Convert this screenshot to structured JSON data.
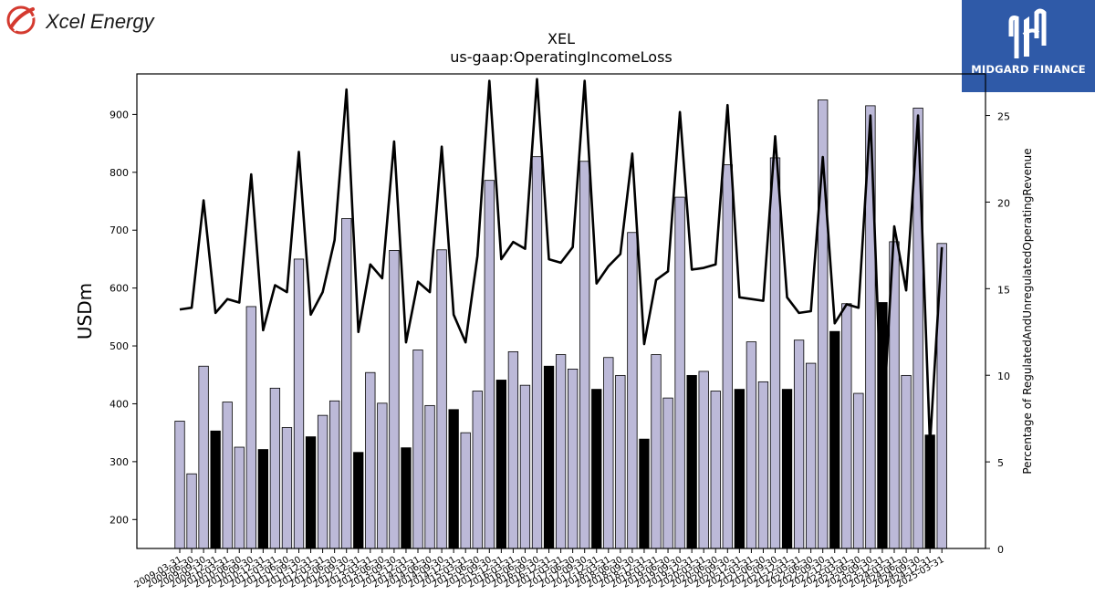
{
  "brand": {
    "left_logo_text": "Xcel Energy",
    "left_logo_color": "#d43a2f",
    "right_logo_text": "MIDGARD FINANCE",
    "right_logo_bg": "#2f5aa8"
  },
  "chart_data": {
    "type": "bar",
    "title": "XEL",
    "subtitle": "us-gaap:OperatingIncomeLoss",
    "ylabel": "USDm",
    "ylabel_right": "Percentage of RegulatedAndUnregulatedOperatingRevenue",
    "ylim": [
      150,
      970
    ],
    "ylim_right": [
      0,
      27.4
    ],
    "yticks": [
      200,
      300,
      400,
      500,
      600,
      700,
      800,
      900
    ],
    "yticks_right": [
      0,
      5,
      10,
      15,
      20,
      25
    ],
    "colors": {
      "bar_default": "#bcb9d8",
      "bar_highlight": "#000000",
      "line": "#000000"
    },
    "x_tick_labels": [
      "2009-03-31",
      "2009-06-30",
      "2009-09-30",
      "2009-12-31",
      "2010-03-31",
      "2010-06-30",
      "2010-09-30",
      "2010-12-31",
      "2011-03-31",
      "2011-06-30",
      "2011-09-30",
      "2011-12-31",
      "2012-03-31",
      "2012-06-30",
      "2012-09-30",
      "2012-12-31",
      "2013-03-31",
      "2013-06-30",
      "2013-09-30",
      "2013-12-31",
      "2014-03-31",
      "2014-06-30",
      "2014-09-30",
      "2014-12-31",
      "2015-03-31",
      "2015-06-30",
      "2015-09-30",
      "2015-12-31",
      "2016-03-31",
      "2016-06-30",
      "2016-09-30",
      "2016-12-31",
      "2017-03-31",
      "2017-06-30",
      "2017-09-30",
      "2017-12-31",
      "2018-03-31",
      "2018-06-30",
      "2018-09-30",
      "2018-12-31",
      "2019-03-31",
      "2019-06-30",
      "2019-09-30",
      "2019-12-31",
      "2020-03-31",
      "2020-06-30",
      "2020-09-30",
      "2020-12-31",
      "2021-03-31",
      "2021-06-30",
      "2021-09-30",
      "2021-12-31",
      "2022-03-31",
      "2022-06-30",
      "2022-09-30",
      "2022-12-31",
      "2023-03-31",
      "2023-06-30",
      "2023-09-30",
      "2023-12-31",
      "2024-03-31",
      "2024-06-30",
      "2024-09-30",
      "2024-12-31",
      "2025-03-31"
    ],
    "bars": [
      370,
      279,
      465,
      353,
      403,
      325,
      568,
      321,
      427,
      359,
      650,
      343,
      380,
      405,
      720,
      316,
      454,
      401,
      665,
      324,
      493,
      397,
      666,
      390,
      350,
      422,
      786,
      441,
      490,
      432,
      827,
      465,
      485,
      460,
      819,
      425,
      480,
      449,
      696,
      339,
      485,
      410,
      757,
      449,
      456,
      422,
      813,
      425,
      507,
      438,
      825,
      425,
      510,
      470,
      925,
      525,
      573,
      418,
      915,
      575,
      680,
      449,
      911,
      346,
      677
    ],
    "highlight": [
      false,
      false,
      false,
      true,
      false,
      false,
      false,
      true,
      false,
      false,
      false,
      true,
      false,
      false,
      false,
      true,
      false,
      false,
      false,
      true,
      false,
      false,
      false,
      true,
      false,
      false,
      false,
      true,
      false,
      false,
      false,
      true,
      false,
      false,
      false,
      true,
      false,
      false,
      false,
      true,
      false,
      false,
      false,
      true,
      false,
      false,
      false,
      true,
      false,
      false,
      false,
      true,
      false,
      false,
      false,
      true,
      false,
      false,
      false,
      true,
      false,
      false,
      false,
      true,
      false
    ],
    "line_pct": [
      13.8,
      13.9,
      20.1,
      13.6,
      14.4,
      14.2,
      21.6,
      12.6,
      15.2,
      14.8,
      22.9,
      13.5,
      14.8,
      17.8,
      26.5,
      12.5,
      16.4,
      15.6,
      23.5,
      11.9,
      15.4,
      14.8,
      23.2,
      13.5,
      11.9,
      16.9,
      27.0,
      16.7,
      17.7,
      17.3,
      27.1,
      16.7,
      16.5,
      17.4,
      27.0,
      15.3,
      16.3,
      17.0,
      22.8,
      11.8,
      15.5,
      16.0,
      25.2,
      16.1,
      16.2,
      16.4,
      25.6,
      14.5,
      14.4,
      14.3,
      23.8,
      14.5,
      13.6,
      13.7,
      22.6,
      13.0,
      14.1,
      13.9,
      25.0,
      6.5,
      18.6,
      14.9,
      25.0,
      6.0,
      17.4
    ]
  }
}
